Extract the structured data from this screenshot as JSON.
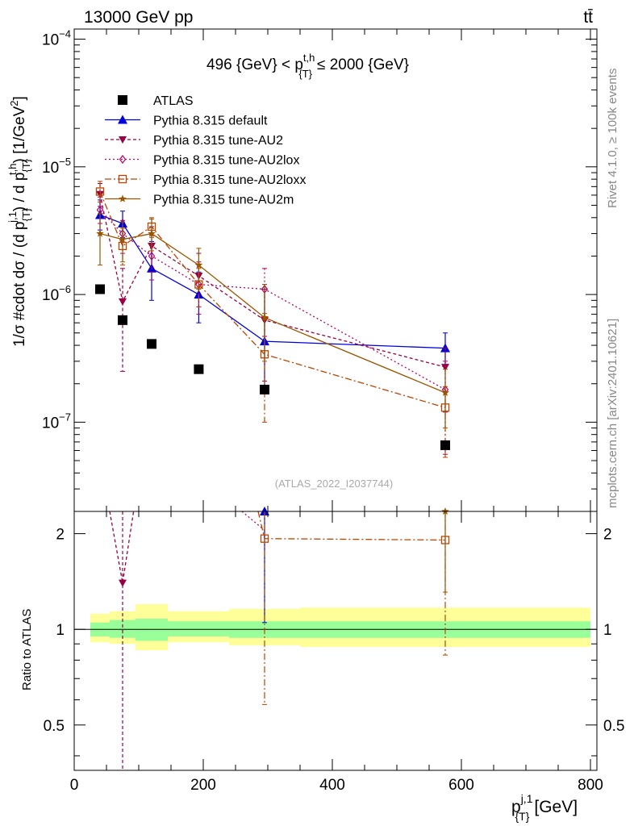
{
  "header": {
    "left": "13000 GeV pp",
    "right": "tt̄"
  },
  "side_labels": {
    "rivet": "Rivet 4.1.0, ≥ 100k events",
    "mcplots": "mcplots.cern.ch [arXiv:2401.10621]"
  },
  "colors": {
    "atlas": "#000000",
    "default": "#0000dd",
    "au2": "#990044",
    "au2lox": "#bb0066",
    "au2loxx": "#bb4400",
    "au2m": "#995500",
    "band_inner": "#99ff99",
    "band_outer": "#ffff99"
  },
  "chart_data": [
    {
      "type": "line",
      "title": "496 {GeV} < p{T}t,h ≤ 2000 {GeV}",
      "title_main": "496 {GeV} < p",
      "title_sup": "t,h",
      "title_sub": "{T}",
      "title_end": "≤ 2000 {GeV}",
      "watermark": "(ATLAS_2022_I2037744)",
      "ylabel": "1/σ #cdot dσ / (d p{T}j,1 / d p{T}t,h) [1/GeV²]",
      "ylabel_parts": [
        "1/σ #cdot dσ / (d p",
        "{T}",
        "j,1",
        ") / d p",
        "{T}",
        "t,h",
        ") [1/GeV",
        "2",
        "]"
      ],
      "yscale": "log",
      "ylim": [
        2e-08,
        0.00012
      ],
      "xlim": [
        0,
        810
      ],
      "ytick_labels": [
        {
          "value": 1e-07,
          "mant": "10",
          "exp": "−7"
        },
        {
          "value": 1e-06,
          "mant": "10",
          "exp": "−6"
        },
        {
          "value": 1e-05,
          "mant": "10",
          "exp": "−5"
        },
        {
          "value": 0.0001,
          "mant": "10",
          "exp": "−4"
        }
      ],
      "legend": [
        {
          "key": "atlas",
          "label": "ATLAS"
        },
        {
          "key": "default",
          "label": "Pythia 8.315 default"
        },
        {
          "key": "au2",
          "label": "Pythia 8.315 tune-AU2"
        },
        {
          "key": "au2lox",
          "label": "Pythia 8.315 tune-AU2lox"
        },
        {
          "key": "au2loxx",
          "label": "Pythia 8.315 tune-AU2loxx"
        },
        {
          "key": "au2m",
          "label": "Pythia 8.315 tune-AU2m"
        }
      ],
      "x_atlas": [
        40,
        75,
        120,
        193,
        295,
        575
      ],
      "x_mc": [
        40,
        75,
        120,
        193,
        295,
        575
      ],
      "atlas": [
        1.1e-06,
        6.3e-07,
        4.1e-07,
        2.6e-07,
        1.8e-07,
        6.6e-08
      ],
      "series": [
        {
          "key": "default",
          "name": "Pythia 8.315 default",
          "marker": "triangle-up",
          "dash": "",
          "values": [
            4.2e-06,
            3.6e-06,
            1.6e-06,
            1e-06,
            4.3e-07,
            3.8e-07
          ],
          "err_lo": [
            3.2e-06,
            2.8e-06,
            9e-07,
            6e-07,
            1.8e-07,
            2.8e-07
          ],
          "err_hi": [
            5.5e-06,
            4.5e-06,
            2.6e-06,
            1.5e-06,
            1.2e-06,
            5e-07
          ]
        },
        {
          "key": "au2",
          "name": "Pythia 8.315 tune-AU2",
          "marker": "triangle-down",
          "dash": "4,3",
          "values": [
            6.1e-06,
            8.8e-07,
            2.4e-06,
            1.4e-06,
            6.3e-07,
            2.7e-07
          ],
          "err_lo": [
            4.9e-06,
            2.5e-07,
            1.5e-06,
            8e-07,
            2.1e-07,
            1.2e-07
          ],
          "err_hi": [
            7.4e-06,
            1.6e-06,
            3.4e-06,
            2.1e-06,
            1.1e-06,
            3.8e-07
          ]
        },
        {
          "key": "au2lox",
          "name": "Pythia 8.315 tune-AU2lox",
          "marker": "diamond",
          "dash": "2,3",
          "values": [
            4.6e-06,
            3e-06,
            2e-06,
            1.2e-06,
            1.1e-06,
            1.8e-07
          ],
          "err_lo": [
            3.6e-06,
            2.1e-06,
            1.3e-06,
            7e-07,
            4.7e-07,
            5.6e-08
          ],
          "err_hi": [
            5.8e-06,
            3.8e-06,
            2.9e-06,
            1.8e-06,
            1.6e-06,
            3e-07
          ]
        },
        {
          "key": "au2loxx",
          "name": "Pythia 8.315 tune-AU2loxx",
          "marker": "square-open",
          "dash": "8,3,2,3",
          "values": [
            6.4e-06,
            2.4e-06,
            3.4e-06,
            1.2e-06,
            3.4e-07,
            1.3e-07
          ],
          "err_lo": [
            5.3e-06,
            1.7e-06,
            2.8e-06,
            8e-07,
            1e-07,
            5.3e-08
          ],
          "err_hi": [
            7.7e-06,
            3.3e-06,
            4e-06,
            1.6e-06,
            7.1e-07,
            1.9e-07
          ]
        },
        {
          "key": "au2m",
          "name": "Pythia 8.315 tune-AU2m",
          "marker": "star",
          "dash": "",
          "values": [
            3e-06,
            2.7e-06,
            3e-06,
            1.7e-06,
            6.6e-07,
            1.7e-07
          ],
          "err_lo": [
            1.7e-06,
            1.8e-06,
            2.2e-06,
            1.1e-06,
            3e-07,
            9e-08
          ],
          "err_hi": [
            4.3e-06,
            3.7e-06,
            3.9e-06,
            2.3e-06,
            1.2e-06,
            2.6e-07
          ]
        }
      ]
    },
    {
      "type": "line",
      "ylabel": "Ratio to ATLAS",
      "xlabel": "p{T}j,1 [GeV]",
      "xlabel_main": "p",
      "xlabel_sup": "j,1",
      "xlabel_sub": "{T}",
      "xlabel_end": "[GeV]",
      "ylim": [
        0.36,
        2.35
      ],
      "xlim": [
        0,
        810
      ],
      "ytick_labels": [
        {
          "value": 0.5,
          "label": "0.5"
        },
        {
          "value": 1,
          "label": "1"
        },
        {
          "value": 2,
          "label": "2"
        }
      ],
      "xtick_labels": [
        {
          "value": 0,
          "label": "0"
        },
        {
          "value": 200,
          "label": "200"
        },
        {
          "value": 400,
          "label": "400"
        },
        {
          "value": 600,
          "label": "600"
        },
        {
          "value": 800,
          "label": "800"
        }
      ],
      "bands": [
        {
          "x0": 25,
          "x1": 55,
          "inner": [
            0.95,
            1.05
          ],
          "outer": [
            0.91,
            1.12
          ]
        },
        {
          "x0": 55,
          "x1": 95,
          "inner": [
            0.94,
            1.07
          ],
          "outer": [
            0.9,
            1.14
          ]
        },
        {
          "x0": 95,
          "x1": 145,
          "inner": [
            0.92,
            1.08
          ],
          "outer": [
            0.86,
            1.2
          ]
        },
        {
          "x0": 145,
          "x1": 240,
          "inner": [
            0.95,
            1.06
          ],
          "outer": [
            0.91,
            1.14
          ]
        },
        {
          "x0": 240,
          "x1": 350,
          "inner": [
            0.94,
            1.06
          ],
          "outer": [
            0.89,
            1.16
          ]
        },
        {
          "x0": 350,
          "x1": 800,
          "inner": [
            0.94,
            1.06
          ],
          "outer": [
            0.88,
            1.17
          ]
        }
      ],
      "series": [
        {
          "key": "default",
          "x": [
            295
          ],
          "values": [
            2.35
          ],
          "err_lo": [
            1.05
          ],
          "err_hi": [
            2.35
          ],
          "marker": "triangle-up",
          "dash": ""
        },
        {
          "key": "au2",
          "x": [
            75
          ],
          "values": [
            1.4
          ],
          "err_lo": [
            0.36
          ],
          "err_hi": [
            2.35
          ],
          "marker": "triangle-down",
          "dash": "4,3"
        },
        {
          "key": "au2loxx",
          "x": [
            295,
            575
          ],
          "values": [
            1.93,
            1.91
          ],
          "err_lo": [
            0.58,
            0.83
          ],
          "err_hi": [
            2.35,
            2.35
          ],
          "marker": "square-open",
          "dash": "8,3,2,3"
        },
        {
          "key": "au2m",
          "x": [
            575
          ],
          "values": [
            2.35
          ],
          "err_lo": [
            1.31
          ],
          "err_hi": [
            2.35
          ],
          "marker": "star",
          "dash": ""
        }
      ],
      "offscale_lines": [
        {
          "key": "au2",
          "dash": "4,3",
          "points": [
            [
              55,
              2.35
            ],
            [
              75,
              1.4
            ],
            [
              92,
              2.35
            ]
          ]
        },
        {
          "key": "au2lox",
          "dash": "2,3",
          "points": [
            [
              260,
              2.35
            ],
            [
              295,
              2.05
            ]
          ]
        },
        {
          "key": "au2loxx",
          "dash": "8,3,2,3",
          "points": [
            [
              285,
              2.35
            ],
            [
              295,
              1.93
            ],
            [
              575,
              1.91
            ]
          ]
        }
      ]
    }
  ]
}
